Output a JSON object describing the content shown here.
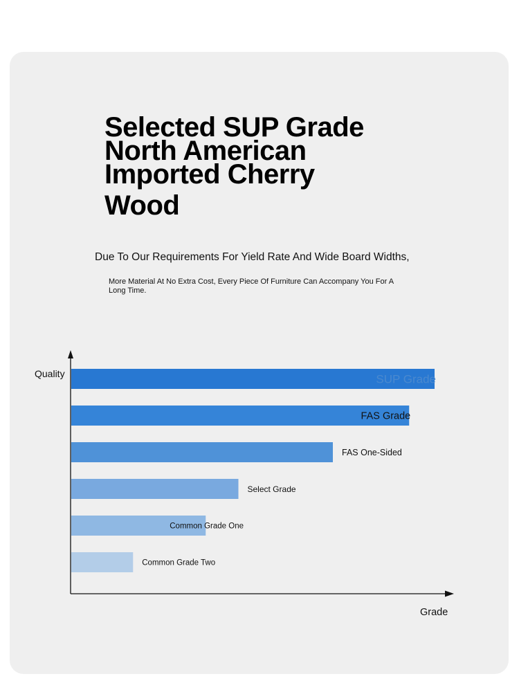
{
  "headline": {
    "lines": [
      "Selected SUP Grade",
      "North American",
      "Imported Cherry",
      "Wood"
    ]
  },
  "subtitle": "Due To Our Requirements For Yield Rate And Wide Board Widths,",
  "description": "More Material At No Extra Cost, Every Piece Of Furniture Can Accompany You For A Long Time.",
  "chart_data": {
    "type": "bar",
    "orientation": "horizontal",
    "ylabel": "Quality",
    "xlabel": "Grade",
    "categories": [
      "SUP Grade",
      "FAS Grade",
      "FAS One-Sided",
      "Select Grade",
      "Common Grade One",
      "Common Grade Two"
    ],
    "values": [
      100,
      93,
      72,
      46,
      37,
      17
    ],
    "xlim": [
      0,
      104
    ],
    "colors": [
      "#2878d2",
      "#3584d8",
      "#4f92d8",
      "#79a9df",
      "#8fb8e3",
      "#b3cde8"
    ],
    "label_colors": [
      "#4a89cf",
      "#111111",
      "#111111",
      "#111111",
      "#111111",
      "#111111"
    ],
    "grid": false,
    "legend": "none"
  }
}
